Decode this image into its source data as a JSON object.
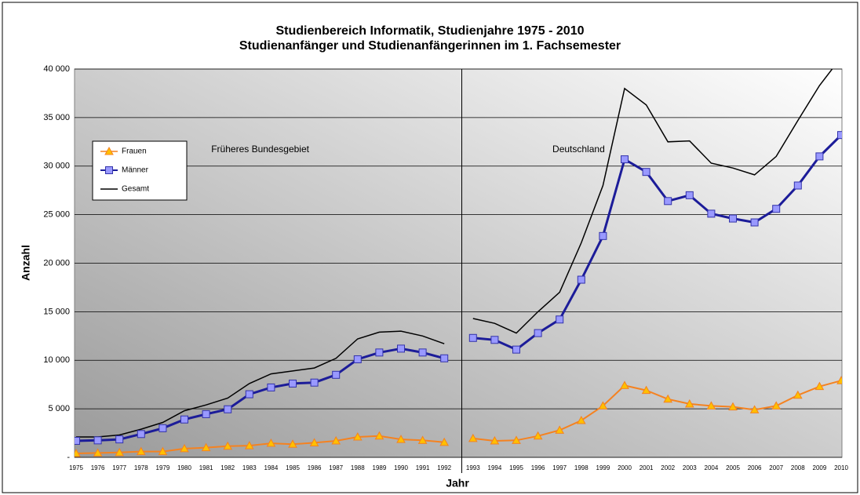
{
  "chart_data": {
    "type": "line",
    "title": "Studienbereich Informatik,  Studienjahre 1975 - 2010",
    "subtitle": "Studienanfänger und Studienanfängerinnen im 1. Fachsemester",
    "x_label": "Jahr",
    "y_label": "Anzahl",
    "categories": [
      "1975",
      "1976",
      "1977",
      "1978",
      "1979",
      "1980",
      "1981",
      "1982",
      "1983",
      "1984",
      "1985",
      "1986",
      "1987",
      "1988",
      "1989",
      "1990",
      "1991",
      "1992",
      "1993",
      "1994",
      "1995",
      "1996",
      "1997",
      "1998",
      "1999",
      "2000",
      "2001",
      "2002",
      "2003",
      "2004",
      "2005",
      "2006",
      "2007",
      "2008",
      "2009",
      "2010"
    ],
    "regions": [
      {
        "label": "Früheres Bundesgebiet",
        "from": "1975",
        "to": "1992"
      },
      {
        "label": "Deutschland",
        "from": "1993",
        "to": "2010"
      }
    ],
    "series": [
      {
        "name": "Frauen",
        "color": "#f58220",
        "marker": "triangle",
        "marker_color": "#ffc000",
        "values": [
          400,
          450,
          500,
          600,
          600,
          900,
          1000,
          1150,
          1200,
          1450,
          1350,
          1500,
          1700,
          2100,
          2200,
          1850,
          1750,
          1550,
          1950,
          1700,
          1750,
          2200,
          2800,
          3800,
          5300,
          7400,
          6900,
          6000,
          5500,
          5300,
          5200,
          4900,
          5300,
          6400,
          7300,
          7900
        ]
      },
      {
        "name": "Männer",
        "color": "#1c1c99",
        "marker": "square",
        "marker_color": "#9999ff",
        "values": [
          1700,
          1750,
          1850,
          2400,
          3000,
          3900,
          4450,
          4950,
          6500,
          7200,
          7600,
          7700,
          8500,
          10100,
          10800,
          11200,
          10800,
          10200,
          12300,
          12100,
          11100,
          12800,
          14200,
          18300,
          22800,
          30700,
          29400,
          26400,
          27000,
          25100,
          24600,
          24200,
          25600,
          28000,
          31000,
          33200
        ]
      },
      {
        "name": "Gesamt",
        "color": "#000000",
        "marker": "none",
        "values": [
          2100,
          2100,
          2300,
          2900,
          3600,
          4800,
          5400,
          6100,
          7600,
          8600,
          8900,
          9200,
          10200,
          12200,
          12900,
          13000,
          12500,
          11700,
          14300,
          13800,
          12800,
          15000,
          17000,
          22100,
          28000,
          38000,
          36300,
          32500,
          32600,
          30300,
          29800,
          29100,
          31000,
          34700,
          38300,
          41200
        ]
      }
    ],
    "ylim": [
      0,
      40000
    ],
    "yticks": [
      {
        "value": 0,
        "label": "-"
      },
      {
        "value": 5000,
        "label": "5 000"
      },
      {
        "value": 10000,
        "label": "10 000"
      },
      {
        "value": 15000,
        "label": "15 000"
      },
      {
        "value": 20000,
        "label": "20 000"
      },
      {
        "value": 25000,
        "label": "25 000"
      },
      {
        "value": 30000,
        "label": "30 000"
      },
      {
        "value": 35000,
        "label": "35 000"
      },
      {
        "value": 40000,
        "label": "40 000"
      }
    ],
    "grid": true,
    "legend": "upper left"
  }
}
